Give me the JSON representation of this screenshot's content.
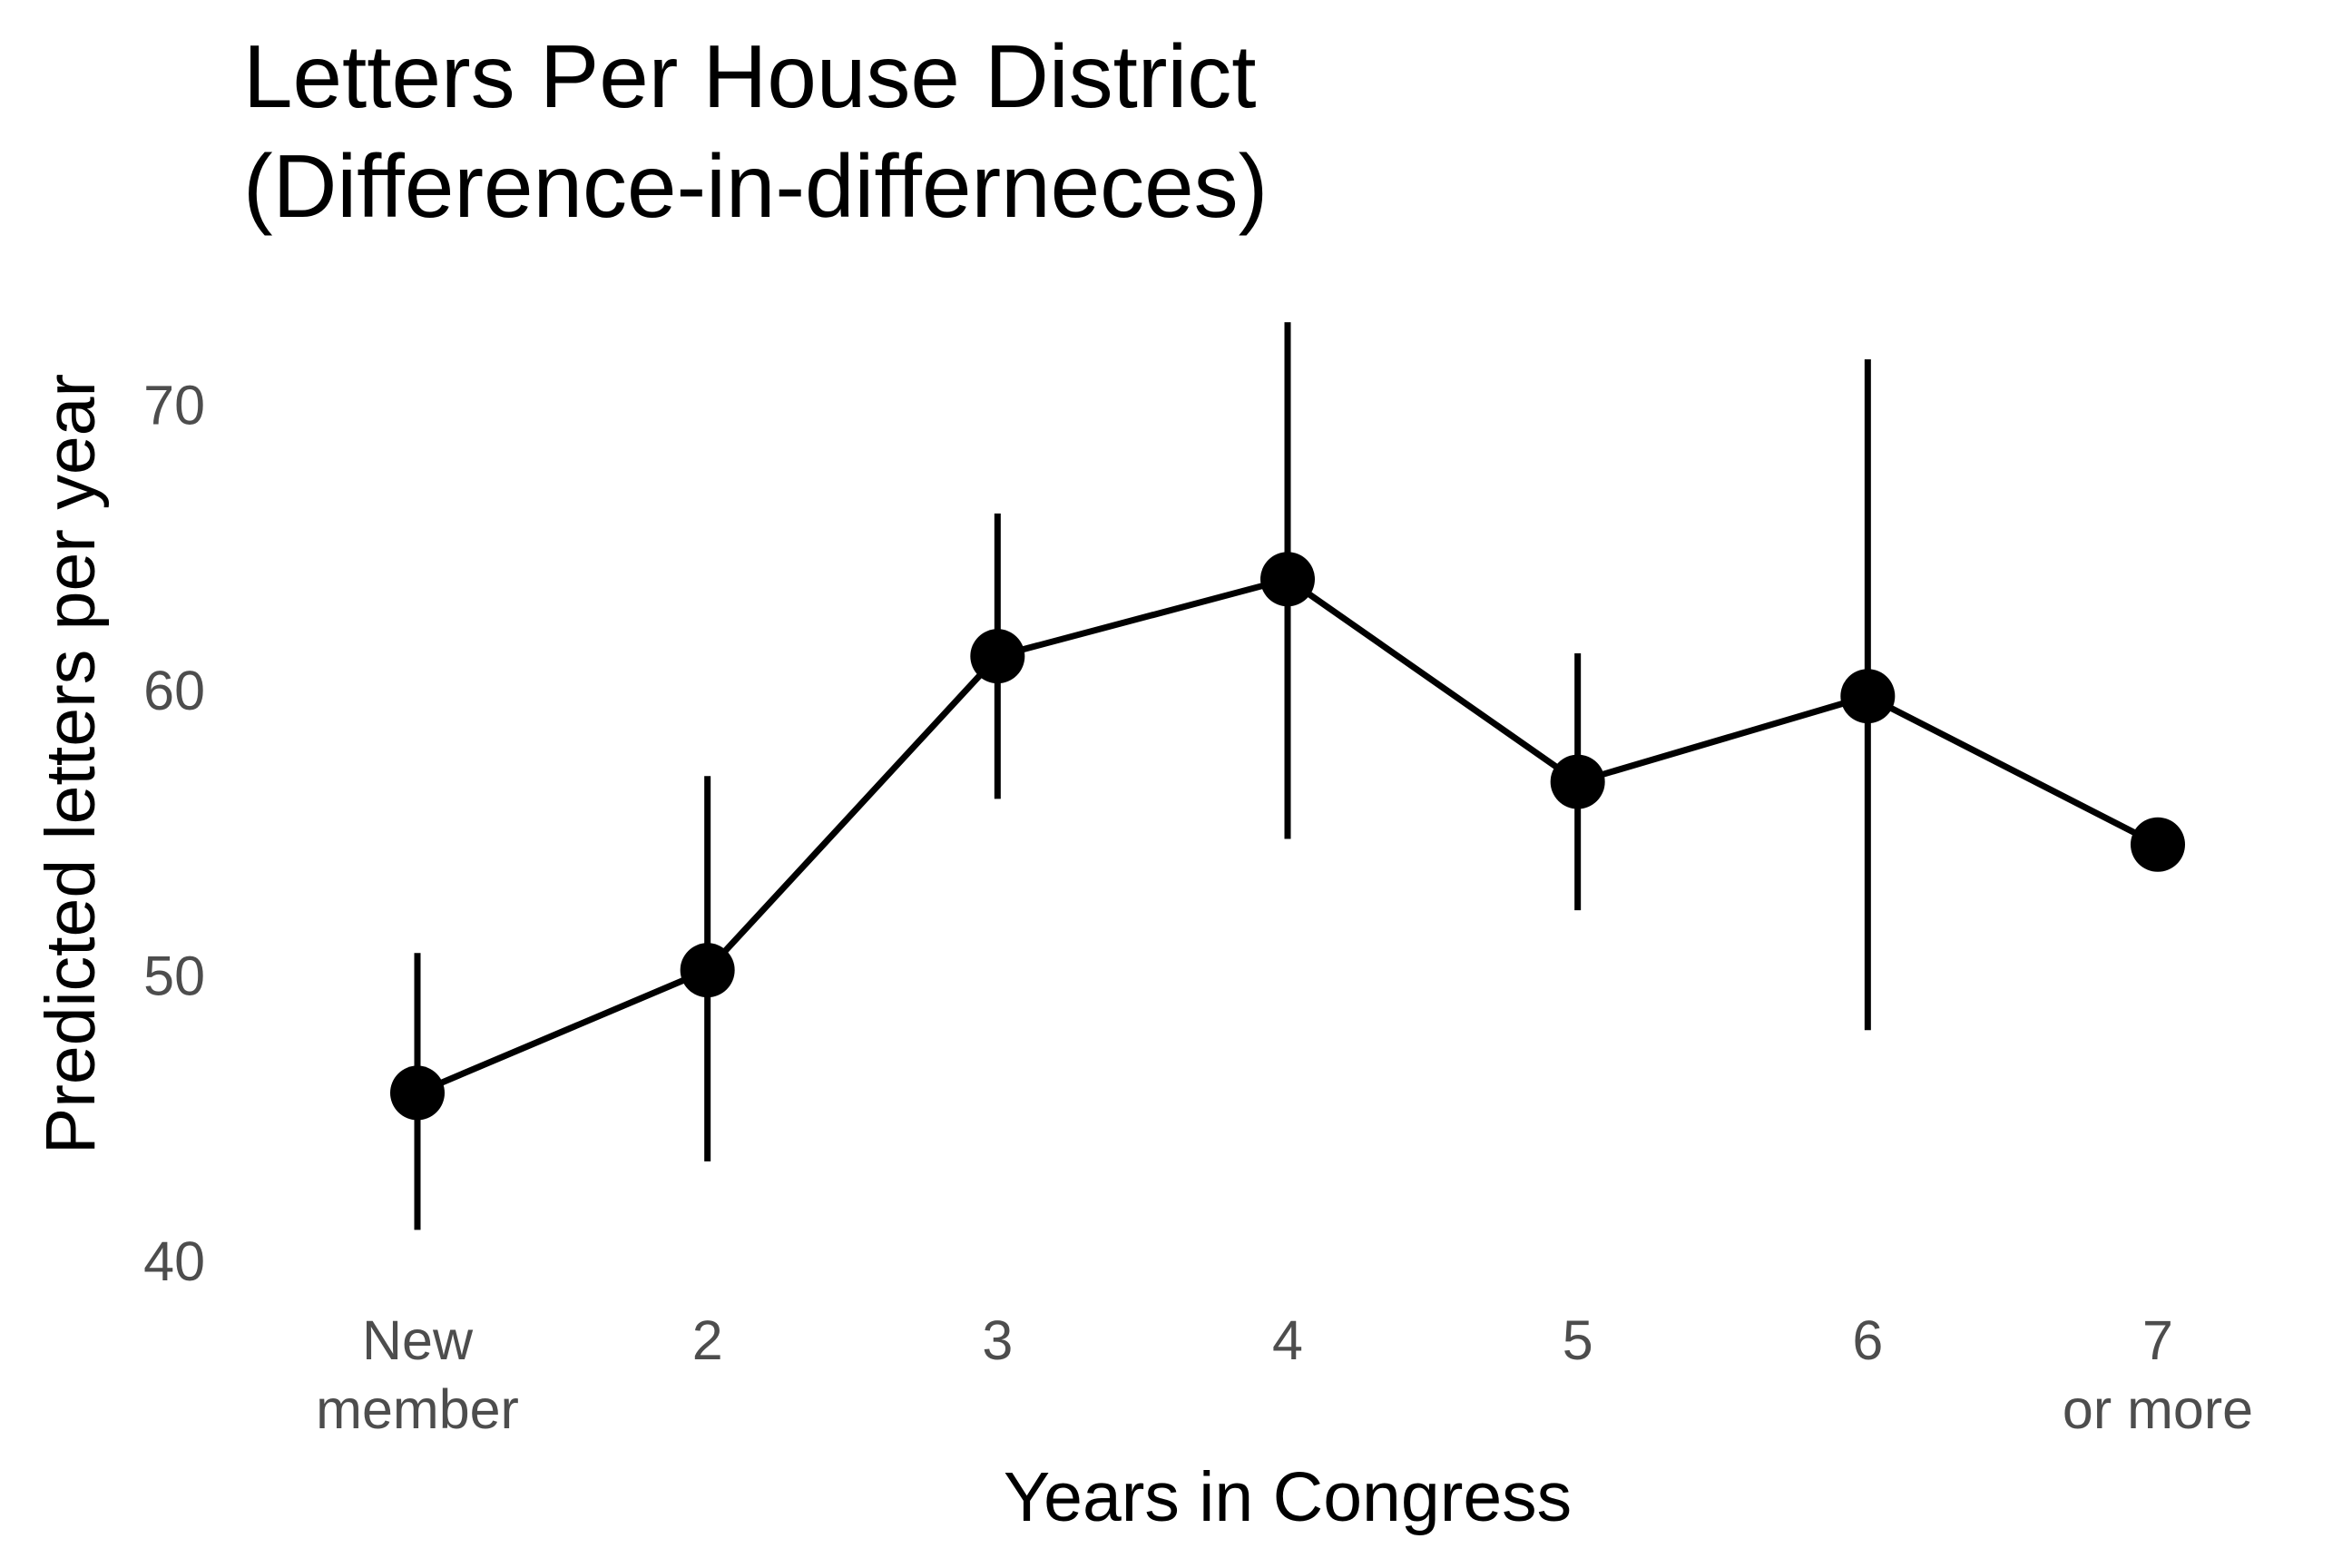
{
  "chart_data": {
    "type": "line",
    "title_lines": [
      "Letters Per House District",
      "(Difference-in-differneces)"
    ],
    "xlabel": "Years in Congress",
    "ylabel": "Predicted letters per year",
    "categories": [
      [
        "New",
        "member"
      ],
      [
        "2"
      ],
      [
        "3"
      ],
      [
        "4"
      ],
      [
        "5"
      ],
      [
        "6"
      ],
      [
        "7",
        "or more"
      ]
    ],
    "y_ticks": [
      40,
      50,
      60,
      70
    ],
    "ylim": [
      40,
      73
    ],
    "grid": false,
    "legend": "none",
    "series": [
      {
        "values": [
          45.9,
          50.2,
          61.2,
          63.9,
          56.8,
          59.8,
          54.6
        ],
        "lower": [
          41.1,
          43.5,
          56.2,
          54.8,
          52.3,
          48.1,
          null
        ],
        "upper": [
          50.8,
          57.0,
          66.2,
          72.9,
          61.3,
          71.6,
          null
        ],
        "color": "#000000"
      }
    ]
  }
}
